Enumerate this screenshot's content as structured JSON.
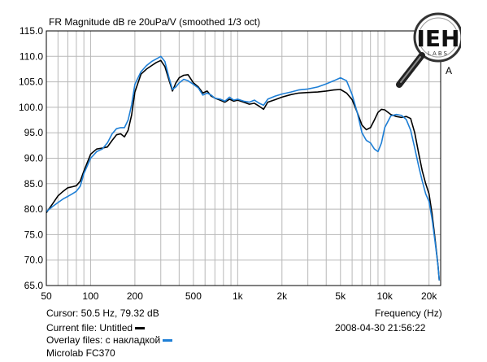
{
  "chart_data": {
    "type": "line",
    "title": "FR Magnitude dB re 20uPa/V (smoothed 1/3 oct)",
    "xlabel": "Frequency (Hz)",
    "ylabel": "",
    "x_scale": "log",
    "xlim": [
      50,
      24000
    ],
    "ylim": [
      65,
      115
    ],
    "grid": true,
    "x_ticks": [
      50,
      100,
      200,
      500,
      1000,
      2000,
      5000,
      10000,
      20000
    ],
    "x_tick_labels": [
      "50",
      "100",
      "200",
      "500",
      "1k",
      "2k",
      "5k",
      "10k",
      "20k"
    ],
    "y_ticks": [
      65,
      70,
      75,
      80,
      85,
      90,
      95,
      100,
      105,
      110,
      115
    ],
    "y_tick_labels": [
      "65.0",
      "70.0",
      "75.0",
      "80.0",
      "85.0",
      "90.0",
      "95.0",
      "100.0",
      "105.0",
      "110.0",
      "115.0"
    ],
    "series": [
      {
        "color": "#000000",
        "x": [
          50,
          55,
          60,
          65,
          70,
          75,
          80,
          85,
          90,
          100,
          110,
          120,
          130,
          140,
          150,
          160,
          170,
          180,
          190,
          200,
          220,
          240,
          260,
          280,
          300,
          320,
          340,
          360,
          380,
          400,
          430,
          460,
          500,
          540,
          580,
          620,
          660,
          700,
          760,
          820,
          880,
          940,
          1000,
          1100,
          1200,
          1300,
          1400,
          1500,
          1600,
          1800,
          2000,
          2300,
          2600,
          3000,
          3500,
          4000,
          4500,
          5000,
          5500,
          6000,
          6500,
          7000,
          7500,
          8000,
          8500,
          9000,
          9500,
          10000,
          11000,
          12000,
          13000,
          14000,
          15000,
          16000,
          17000,
          18000,
          19000,
          20000,
          21000,
          22000,
          23000,
          23500
        ],
        "values": [
          79.3,
          81.0,
          82.6,
          83.5,
          84.2,
          84.4,
          84.6,
          85.5,
          87.5,
          90.8,
          91.8,
          92.0,
          92.2,
          93.5,
          94.6,
          94.8,
          94.2,
          95.5,
          98.5,
          103.0,
          106.5,
          107.5,
          108.2,
          108.8,
          109.2,
          108.0,
          105.5,
          103.2,
          104.8,
          105.8,
          106.3,
          106.4,
          104.8,
          104.0,
          102.8,
          103.2,
          102.2,
          101.8,
          101.4,
          101.0,
          101.6,
          101.2,
          101.4,
          101.0,
          100.6,
          100.8,
          100.2,
          99.6,
          101.0,
          101.5,
          102.0,
          102.5,
          102.8,
          102.9,
          103.0,
          103.2,
          103.4,
          103.5,
          102.8,
          101.5,
          99.0,
          96.5,
          95.6,
          96.0,
          97.5,
          99.0,
          99.6,
          99.5,
          98.6,
          98.2,
          98.0,
          98.2,
          97.8,
          95.0,
          91.0,
          87.5,
          85.0,
          83.0,
          79.0,
          74.0,
          69.0,
          66.0
        ]
      },
      {
        "color": "#1e7fd6",
        "x": [
          50,
          55,
          60,
          65,
          70,
          75,
          80,
          85,
          90,
          100,
          110,
          120,
          130,
          140,
          150,
          160,
          170,
          180,
          190,
          200,
          220,
          240,
          260,
          280,
          300,
          320,
          340,
          360,
          380,
          400,
          430,
          460,
          500,
          540,
          580,
          620,
          660,
          700,
          760,
          820,
          880,
          940,
          1000,
          1100,
          1200,
          1300,
          1400,
          1500,
          1600,
          1800,
          2000,
          2300,
          2600,
          3000,
          3500,
          4000,
          4500,
          5000,
          5500,
          6000,
          6500,
          7000,
          7500,
          8000,
          8500,
          9000,
          9500,
          10000,
          11000,
          12000,
          13000,
          14000,
          15000,
          16000,
          17000,
          18000,
          19000,
          20000,
          21000,
          22000,
          23000,
          23500
        ],
        "values": [
          79.5,
          80.5,
          81.3,
          82.0,
          82.5,
          83.0,
          83.5,
          84.5,
          87.0,
          90.0,
          91.3,
          91.8,
          93.0,
          94.8,
          95.8,
          96.0,
          96.0,
          97.5,
          100.5,
          104.5,
          107.0,
          108.2,
          109.0,
          109.5,
          110.0,
          109.0,
          106.0,
          103.5,
          104.0,
          104.8,
          105.5,
          105.2,
          104.5,
          103.8,
          102.4,
          102.8,
          102.4,
          101.8,
          101.6,
          101.2,
          102.0,
          101.4,
          101.6,
          101.2,
          101.0,
          101.4,
          100.8,
          100.4,
          101.6,
          102.2,
          102.6,
          103.0,
          103.4,
          103.6,
          104.0,
          104.6,
          105.2,
          105.8,
          105.2,
          102.5,
          99.0,
          95.0,
          93.5,
          93.0,
          91.8,
          91.3,
          93.0,
          96.0,
          98.3,
          98.6,
          98.4,
          97.6,
          95.5,
          92.0,
          88.5,
          85.5,
          83.0,
          81.5,
          78.0,
          73.5,
          69.0,
          66.0
        ]
      }
    ]
  },
  "legend": {
    "current_file": "Current file: Untitled",
    "current_color": "#000000",
    "overlay_files": "Overlay files: с накладкой",
    "overlay_color": "#1e7fd6"
  },
  "cursor_readout": "Cursor: 50.5 Hz, 79.32 dB",
  "timestamp": "2008-04-30  21:56:22",
  "caption": "Microlab FC370",
  "corner_label": "A",
  "logo": {
    "text": "IEH",
    "subtext": "LABS"
  }
}
